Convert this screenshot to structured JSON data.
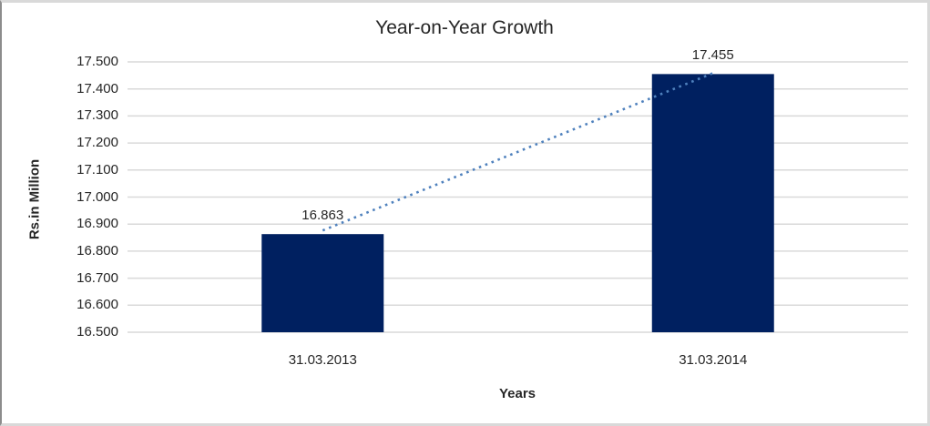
{
  "chart_data": {
    "type": "bar",
    "title": "Year-on-Year Growth",
    "xlabel": "Years",
    "ylabel": "Rs.in Million",
    "categories": [
      "31.03.2013",
      "31.03.2014"
    ],
    "values": [
      16.863,
      17.455
    ],
    "data_labels": [
      "16.863",
      "17.455"
    ],
    "ylim": [
      16.5,
      17.5
    ],
    "ytick_step": 0.1,
    "ytick_labels": [
      "17.500",
      "17.400",
      "17.300",
      "17.200",
      "17.100",
      "17.000",
      "16.900",
      "16.800",
      "16.700",
      "16.600",
      "16.500"
    ],
    "grid": true,
    "legend": "none",
    "trendline": true,
    "colors": {
      "bar": "#002060",
      "trendline": "#4f81bd",
      "gridline": "#d9d9d9",
      "text": "#262626",
      "frame_border": "#d9d9d9"
    }
  }
}
